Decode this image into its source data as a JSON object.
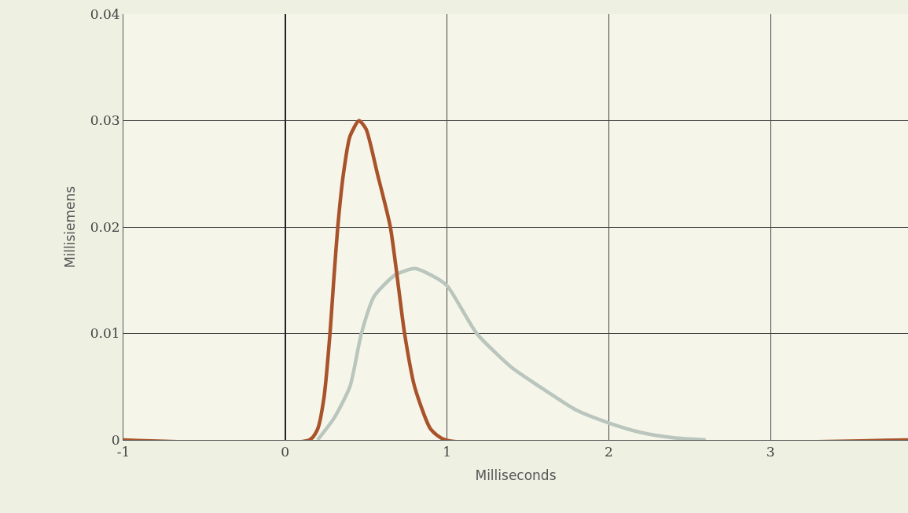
{
  "chart_data": {
    "type": "line",
    "xlabel": "Milliseconds",
    "ylabel": "Millisiemens",
    "xlim": [
      -1,
      3.85
    ],
    "xticks": [
      -1,
      0,
      1,
      2,
      3
    ],
    "ylim": [
      0,
      0.04
    ],
    "yticks": [
      0,
      0.01,
      0.02,
      0.03,
      0.04
    ],
    "grid": true,
    "marker": "none",
    "line_style": "solid",
    "series": [
      {
        "color": "#b9c5bd",
        "x": [
          0.2,
          0.3,
          0.4,
          0.471,
          0.55,
          0.68,
          0.8,
          0.9,
          1.0,
          1.184,
          1.4,
          1.573,
          1.8,
          2.0,
          2.2,
          2.4,
          2.6
        ],
        "values": [
          0,
          0.002,
          0.005,
          0.01,
          0.0135,
          0.0155,
          0.0161,
          0.0155,
          0.0145,
          0.01,
          0.0068,
          0.005,
          0.0028,
          0.0016,
          0.0007,
          0.0002,
          0
        ]
      },
      {
        "color": "#a9532b",
        "x": [
          -1,
          0.15,
          0.2,
          0.24,
          0.277,
          0.3,
          0.325,
          0.36,
          0.4,
          0.456,
          0.5,
          0.57,
          0.65,
          0.738,
          0.8,
          0.9,
          0.99,
          3.85
        ],
        "values": [
          0,
          0,
          0.001,
          0.004,
          0.01,
          0.015,
          0.02,
          0.025,
          0.0285,
          0.03,
          0.0292,
          0.025,
          0.02,
          0.01,
          0.005,
          0.001,
          0,
          0
        ]
      }
    ]
  }
}
